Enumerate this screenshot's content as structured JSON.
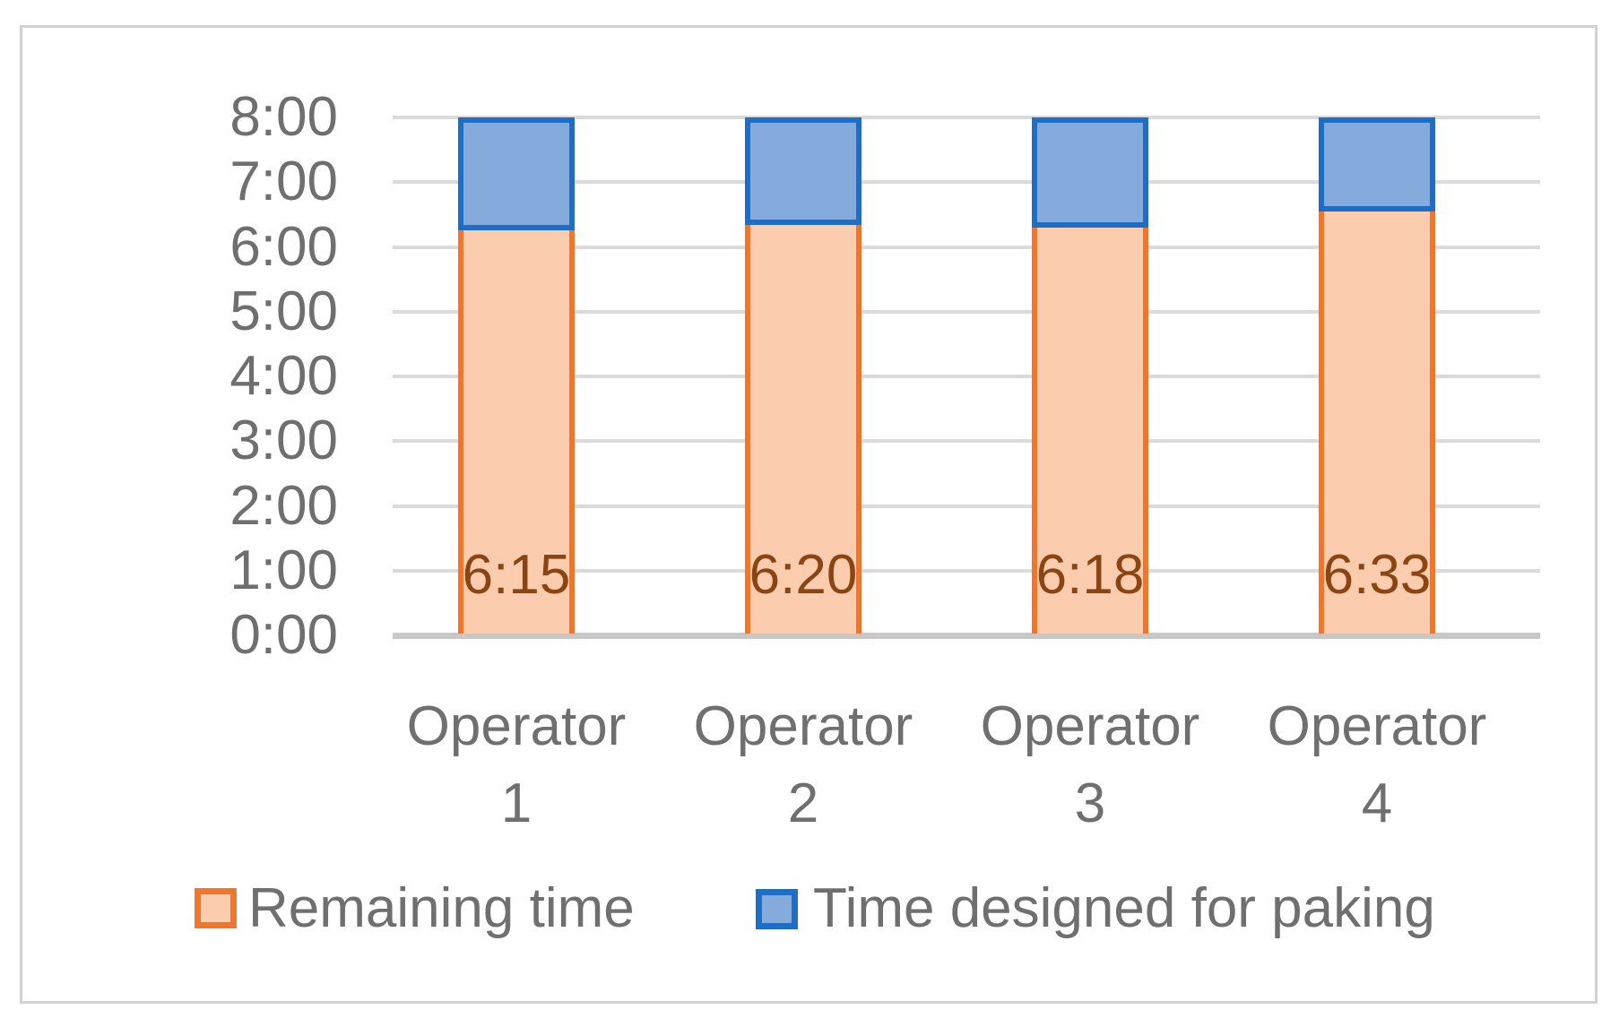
{
  "chart_data": {
    "type": "bar",
    "stacked": true,
    "title": "",
    "categories": [
      "Operator 1",
      "Operator 2",
      "Operator 3",
      "Operator 4"
    ],
    "series": [
      {
        "name": "Remaining time",
        "values": [
          "6:15",
          "6:20",
          "6:18",
          "6:33"
        ],
        "hours": [
          6.25,
          6.3333,
          6.3,
          6.55
        ],
        "fill": "#FBCDAE",
        "border": "#F1752B"
      },
      {
        "name": "Time designed for paking",
        "values": [
          "1:45",
          "1:40",
          "1:42",
          "1:27"
        ],
        "hours": [
          1.75,
          1.6667,
          1.7,
          1.45
        ],
        "fill": "#85AADC",
        "border": "#1E6EC5"
      }
    ],
    "data_labels": {
      "series": "Remaining time",
      "values": [
        "6:15",
        "6:20",
        "6:18",
        "6:33"
      ],
      "color": "#8B4513"
    },
    "stack_total": "8:00",
    "y_ticks": [
      "8:00",
      "7:00",
      "6:00",
      "5:00",
      "4:00",
      "3:00",
      "2:00",
      "1:00",
      "0:00"
    ],
    "ylim": [
      0,
      8
    ],
    "grid": true,
    "legend_position": "bottom",
    "colors": {
      "gridline": "#DBDBDB",
      "axis_line": "#C8C8C8",
      "axis_text": "#6F6F6F",
      "frame_border": "#D2D2D2"
    }
  }
}
